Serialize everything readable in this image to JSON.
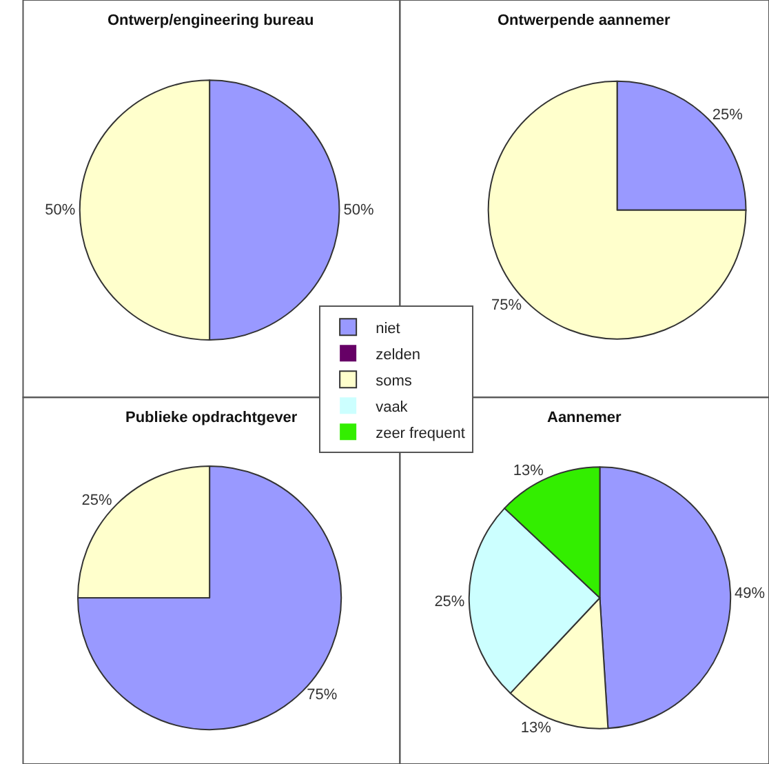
{
  "chart_data": [
    {
      "type": "pie",
      "title": "Ontwerp/engineering bureau",
      "categories": [
        "niet",
        "zelden",
        "soms",
        "vaak",
        "zeer frequent"
      ],
      "values": [
        50,
        0,
        50,
        0,
        0
      ],
      "value_labels": [
        "50%",
        null,
        "50%",
        null,
        null
      ],
      "colors": [
        "#9999ff",
        "#660066",
        "#ffffcc",
        "#ccffff",
        "#33ee00"
      ],
      "legend": "bottom right"
    },
    {
      "type": "pie",
      "title": "Ontwerpende aannemer",
      "categories": [
        null,
        null,
        null,
        null,
        null
      ],
      "values": [
        25,
        0,
        75,
        0,
        0
      ],
      "value_labels": [
        "25%",
        null,
        "75%",
        null,
        null
      ],
      "colors": [
        "#9999ff",
        "#660066",
        "#ffffcc",
        "#ccffff",
        "#33ee00"
      ]
    },
    {
      "type": "pie",
      "title": "Publieke opdrachtgever",
      "categories": [
        null,
        null,
        null,
        null,
        null
      ],
      "values": [
        75,
        0,
        25,
        0,
        0
      ],
      "value_labels": [
        "75%",
        null,
        "25%",
        null,
        null
      ],
      "colors": [
        "#9999ff",
        "#660066",
        "#ffffcc",
        "#ccffff",
        "#33ee00"
      ]
    },
    {
      "type": "pie",
      "title": "Aannemer",
      "categories": [
        null,
        null,
        null,
        null,
        null
      ],
      "values": [
        49,
        0,
        13,
        25,
        13
      ],
      "value_labels": [
        "49%",
        null,
        "13%",
        "25%",
        "13%"
      ],
      "colors": [
        "#9999ff",
        "#660066",
        "#ffffcc",
        "#ccffff",
        "#33ee00"
      ]
    }
  ]
}
